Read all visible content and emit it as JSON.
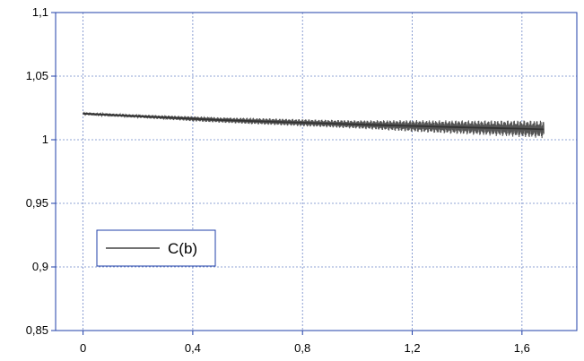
{
  "chart_data": {
    "type": "line",
    "title": "",
    "xlabel": "",
    "ylabel": "",
    "xlim": [
      -0.1,
      1.8
    ],
    "ylim": [
      0.85,
      1.1
    ],
    "x_ticks": [
      0,
      0.4,
      0.8,
      1.2,
      1.6
    ],
    "x_tick_labels": [
      "0",
      "0,4",
      "0,8",
      "1,2",
      "1,6"
    ],
    "y_ticks": [
      0.85,
      0.9,
      0.95,
      1.0,
      1.05,
      1.1
    ],
    "y_tick_labels": [
      "0,85",
      "0,9",
      "0,95",
      "1",
      "1,05",
      "1,1"
    ],
    "grid": true,
    "legend_position": "lower-left",
    "colors": {
      "frame": "#1f3fa8",
      "grid": "#6f86c8",
      "series": "#555555",
      "legend_line": "#444444"
    },
    "series": [
      {
        "name": "C(b)",
        "x": [
          0,
          0.1,
          0.2,
          0.3,
          0.4,
          0.5,
          0.6,
          0.7,
          0.8,
          0.9,
          1.0,
          1.1,
          1.2,
          1.3,
          1.4,
          1.5,
          1.6,
          1.68
        ],
        "y": [
          1.0205,
          1.0195,
          1.0185,
          1.0175,
          1.0165,
          1.0155,
          1.0148,
          1.0141,
          1.0134,
          1.0127,
          1.012,
          1.0114,
          1.0108,
          1.0102,
          1.0097,
          1.0092,
          1.0087,
          1.0082
        ],
        "oscillation_amplitude": [
          0.0008,
          0.0009,
          0.001,
          0.0012,
          0.0015,
          0.0016,
          0.0018,
          0.002,
          0.0021,
          0.0023,
          0.0025,
          0.003,
          0.0035,
          0.0038,
          0.0042,
          0.0046,
          0.005,
          0.0052
        ]
      }
    ]
  }
}
